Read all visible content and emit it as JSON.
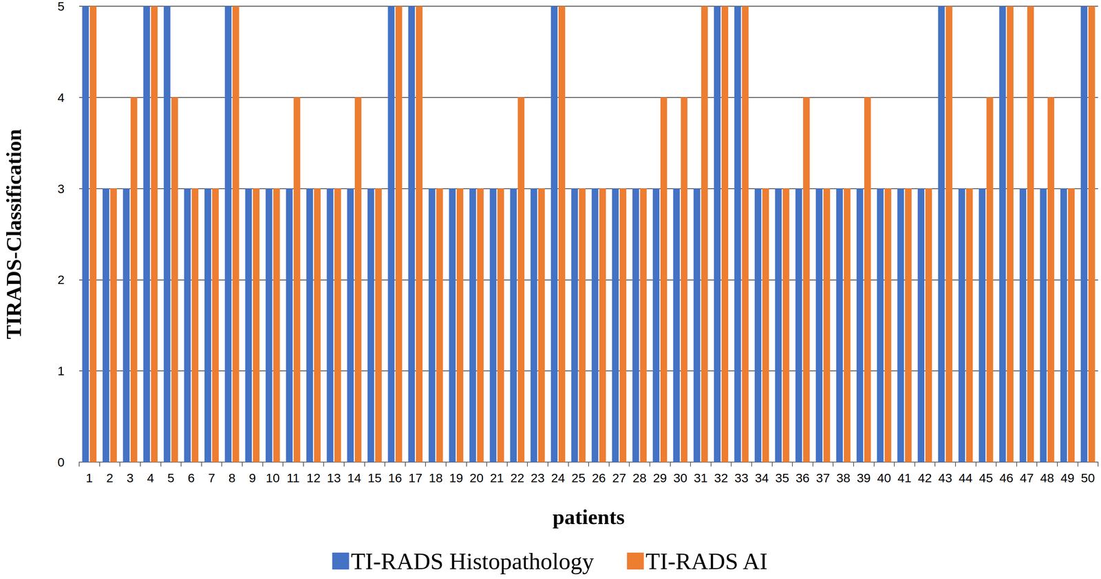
{
  "chart_data": {
    "type": "bar",
    "x_label": "patients",
    "y_label": "TIRADS-Classification",
    "categories": [
      "1",
      "2",
      "3",
      "4",
      "5",
      "6",
      "7",
      "8",
      "9",
      "10",
      "11",
      "12",
      "13",
      "14",
      "15",
      "16",
      "17",
      "18",
      "19",
      "20",
      "21",
      "22",
      "23",
      "24",
      "25",
      "26",
      "27",
      "28",
      "29",
      "30",
      "31",
      "32",
      "33",
      "34",
      "35",
      "36",
      "37",
      "38",
      "39",
      "40",
      "41",
      "42",
      "43",
      "44",
      "45",
      "46",
      "47",
      "48",
      "49",
      "50"
    ],
    "series": [
      {
        "name": "TI-RADS Histopathology",
        "color": "#4472c4",
        "values": [
          5,
          3,
          3,
          5,
          5,
          3,
          3,
          5,
          3,
          3,
          3,
          3,
          3,
          3,
          3,
          5,
          5,
          3,
          3,
          3,
          3,
          3,
          3,
          5,
          3,
          3,
          3,
          3,
          3,
          3,
          3,
          5,
          5,
          3,
          3,
          3,
          3,
          3,
          3,
          3,
          3,
          3,
          5,
          3,
          3,
          5,
          3,
          3,
          3,
          5
        ]
      },
      {
        "name": "TI-RADS AI",
        "color": "#ed7d31",
        "values": [
          5,
          3,
          4,
          5,
          4,
          3,
          3,
          5,
          3,
          3,
          4,
          3,
          3,
          4,
          3,
          5,
          5,
          3,
          3,
          3,
          3,
          4,
          3,
          5,
          3,
          3,
          3,
          3,
          4,
          4,
          5,
          5,
          5,
          3,
          3,
          4,
          3,
          3,
          4,
          3,
          3,
          3,
          5,
          3,
          4,
          5,
          5,
          4,
          3,
          5
        ]
      }
    ],
    "ylim": [
      0,
      5
    ],
    "yticks": [
      0,
      1,
      2,
      3,
      4,
      5
    ],
    "grid": true,
    "legend": "bottom"
  }
}
